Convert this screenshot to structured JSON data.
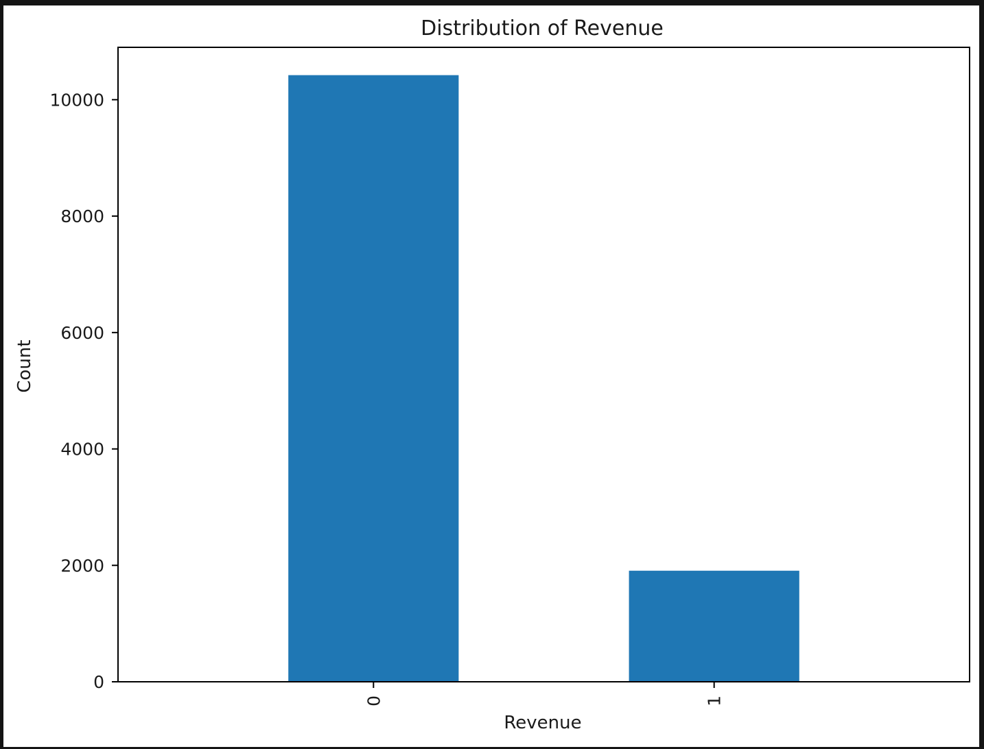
{
  "chart_data": {
    "type": "bar",
    "title": "Distribution of Revenue",
    "xlabel": "Revenue",
    "ylabel": "Count",
    "categories": [
      "0",
      "1"
    ],
    "values": [
      10422,
      1908
    ],
    "ylim": [
      0,
      10900
    ],
    "yticks": [
      0,
      2000,
      4000,
      6000,
      8000,
      10000
    ],
    "ytick_labels": [
      "0",
      "2000",
      "4000",
      "6000",
      "8000",
      "10000"
    ],
    "xtick_rotation": 90,
    "grid": false,
    "legend": "none",
    "bar_color": "#1f77b4"
  }
}
